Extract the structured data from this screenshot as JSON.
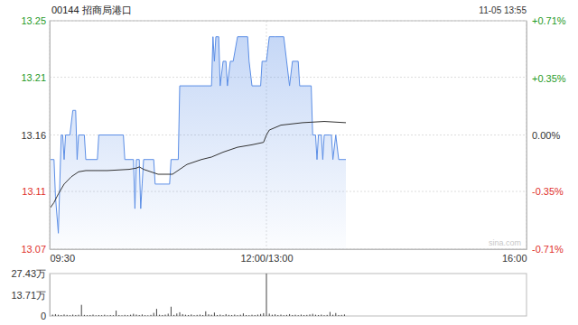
{
  "chart_data": [
    {
      "type": "line",
      "title": "00144 招商局港口",
      "subtitle": "11-05 13:55",
      "annotations": [
        "sina.com"
      ],
      "grid": true,
      "xlim": [
        0,
        330
      ],
      "xticks": [
        {
          "value": 0,
          "label": "09:30"
        },
        {
          "value": 150,
          "label": "12:00/13:00"
        },
        {
          "value": 330,
          "label": "16:00"
        }
      ],
      "ylim": [
        13.067,
        13.253
      ],
      "yticks": [
        {
          "value": 13.253,
          "label": "13.25"
        },
        {
          "value": 13.207,
          "label": "13.21"
        },
        {
          "value": 13.16,
          "label": "13.16"
        },
        {
          "value": 13.114,
          "label": "13.11"
        },
        {
          "value": 13.067,
          "label": "13.07"
        }
      ],
      "y2lim": [
        -0.71,
        0.71
      ],
      "y2ticks": [
        {
          "value": 0.71,
          "label": "+0.71%"
        },
        {
          "value": 0.35,
          "label": "+0.35%"
        },
        {
          "value": 0,
          "label": "0.00%"
        },
        {
          "value": -0.35,
          "label": "-0.35%"
        },
        {
          "value": -0.71,
          "label": "-0.71%"
        }
      ],
      "series": [
        {
          "type": "area",
          "color": "#5b8ee6",
          "x": [
            0,
            3,
            4,
            6,
            7,
            8,
            9,
            10,
            11,
            14,
            16,
            18,
            19,
            20,
            24,
            25,
            33,
            34,
            51,
            52,
            58,
            59,
            60,
            62,
            63,
            64,
            65,
            72,
            73,
            83,
            84,
            89,
            90,
            112,
            113,
            114,
            115,
            117,
            118,
            120,
            122,
            123,
            125,
            127,
            130,
            137,
            138,
            140,
            146,
            147,
            150,
            152,
            155,
            156,
            162,
            164,
            166,
            168,
            172,
            173,
            181,
            182,
            184,
            185,
            186,
            188,
            189,
            190,
            194,
            195,
            196,
            198,
            200,
            205
          ],
          "values": [
            13.14,
            13.14,
            13.11,
            13.08,
            13.12,
            13.16,
            13.16,
            13.14,
            13.16,
            13.16,
            13.18,
            13.18,
            13.14,
            13.16,
            13.16,
            13.14,
            13.14,
            13.16,
            13.16,
            13.14,
            13.14,
            13.1,
            13.14,
            13.14,
            13.1,
            13.12,
            13.14,
            13.14,
            13.12,
            13.12,
            13.14,
            13.14,
            13.2,
            13.2,
            13.24,
            13.22,
            13.24,
            13.24,
            13.2,
            13.22,
            13.22,
            13.2,
            13.22,
            13.22,
            13.24,
            13.24,
            13.22,
            13.2,
            13.2,
            13.22,
            13.22,
            13.24,
            13.24,
            13.24,
            13.24,
            13.22,
            13.2,
            13.22,
            13.22,
            13.2,
            13.2,
            13.16,
            13.16,
            13.14,
            13.16,
            13.16,
            13.14,
            13.16,
            13.16,
            13.16,
            13.14,
            13.16,
            13.14,
            13.14
          ]
        },
        {
          "type": "line",
          "color": "#333333",
          "x": [
            0,
            3,
            6,
            10,
            15,
            20,
            25,
            40,
            55,
            60,
            62,
            65,
            75,
            85,
            90,
            95,
            105,
            112,
            120,
            130,
            140,
            148,
            150,
            152,
            160,
            175,
            190,
            205
          ],
          "values": [
            13.1,
            13.105,
            13.112,
            13.12,
            13.126,
            13.13,
            13.131,
            13.131,
            13.132,
            13.133,
            13.134,
            13.132,
            13.128,
            13.128,
            13.132,
            13.136,
            13.14,
            13.142,
            13.146,
            13.15,
            13.152,
            13.154,
            13.16,
            13.164,
            13.168,
            13.17,
            13.171,
            13.17
          ]
        }
      ]
    },
    {
      "type": "bar",
      "color": "#444444",
      "tick_labels": "y",
      "xlim": [
        0,
        330
      ],
      "ylim": [
        0,
        27.43
      ],
      "yticks": [
        {
          "value": 27.43,
          "label": "27.43万"
        },
        {
          "value": 13.71,
          "label": "13.71万"
        },
        0
      ],
      "x": [
        0,
        2,
        4,
        6,
        8,
        10,
        12,
        14,
        16,
        18,
        20,
        22,
        24,
        26,
        28,
        30,
        32,
        34,
        36,
        38,
        40,
        42,
        44,
        46,
        48,
        50,
        52,
        54,
        56,
        58,
        60,
        62,
        64,
        66,
        68,
        70,
        72,
        74,
        76,
        78,
        80,
        82,
        84,
        86,
        88,
        90,
        92,
        94,
        96,
        98,
        100,
        102,
        104,
        106,
        108,
        110,
        112,
        114,
        116,
        118,
        120,
        122,
        124,
        126,
        128,
        130,
        132,
        134,
        136,
        138,
        140,
        142,
        144,
        146,
        148,
        150,
        152,
        154,
        156,
        158,
        160,
        162,
        164,
        166,
        168,
        170,
        172,
        174,
        176,
        178,
        180,
        182,
        184,
        186,
        188,
        190,
        192,
        194,
        196,
        198,
        200,
        202,
        204
      ],
      "values": [
        1.8,
        0.9,
        1.2,
        0.8,
        0.6,
        1.0,
        0.7,
        0.5,
        0.9,
        0.6,
        0.8,
        7.2,
        0.7,
        0.5,
        0.6,
        0.9,
        0.4,
        0.6,
        0.5,
        0.8,
        0.4,
        0.6,
        0.5,
        3.5,
        0.6,
        0.4,
        0.7,
        0.5,
        0.8,
        1.4,
        0.9,
        0.6,
        1.0,
        0.5,
        0.4,
        0.7,
        2.0,
        4.6,
        0.8,
        0.6,
        0.9,
        1.5,
        6.0,
        0.7,
        1.6,
        2.4,
        1.2,
        0.8,
        0.6,
        1.0,
        0.5,
        0.7,
        0.9,
        0.6,
        3.0,
        1.1,
        0.8,
        2.2,
        0.6,
        0.9,
        0.5,
        1.2,
        0.7,
        0.6,
        0.9,
        0.5,
        0.8,
        1.7,
        0.6,
        0.5,
        0.8,
        0.6,
        0.9,
        1.3,
        1.8,
        27.43,
        1.5,
        0.8,
        1.1,
        0.6,
        0.9,
        0.5,
        0.7,
        1.2,
        0.6,
        0.8,
        0.5,
        0.9,
        0.6,
        0.7,
        1.0,
        1.4,
        0.8,
        0.6,
        0.9,
        0.5,
        0.7,
        2.6,
        0.8,
        1.9,
        0.6,
        0.7,
        1.0
      ]
    }
  ]
}
